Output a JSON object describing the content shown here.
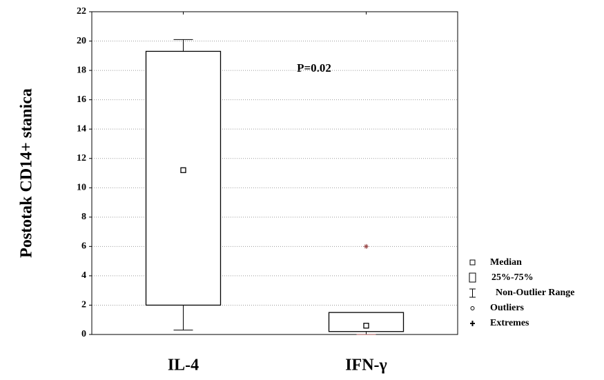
{
  "chart_data": {
    "type": "box",
    "y_label": "Postotak CD14+ stanica",
    "annotation": "P=0.02",
    "categories": [
      "IL-4",
      "IFN-γ"
    ],
    "boxes": [
      {
        "whisker_low": 0.3,
        "q1": 2,
        "median": 11.2,
        "q3": 19.3,
        "whisker_high": 20.1,
        "extremes": []
      },
      {
        "whisker_low": 0,
        "q1": 0.2,
        "median": 0.6,
        "q3": 1.5,
        "whisker_high": 1.5,
        "extremes": [
          6
        ]
      }
    ],
    "ylim": [
      0,
      22
    ],
    "yticks": [
      0,
      2,
      4,
      6,
      8,
      10,
      12,
      14,
      16,
      18,
      20,
      22
    ],
    "grid": true,
    "extreme_color": "#9a4a4a",
    "legend": [
      "Median",
      "25%-75%",
      "Non-Outlier Range",
      "Outliers",
      "Extremes"
    ]
  }
}
